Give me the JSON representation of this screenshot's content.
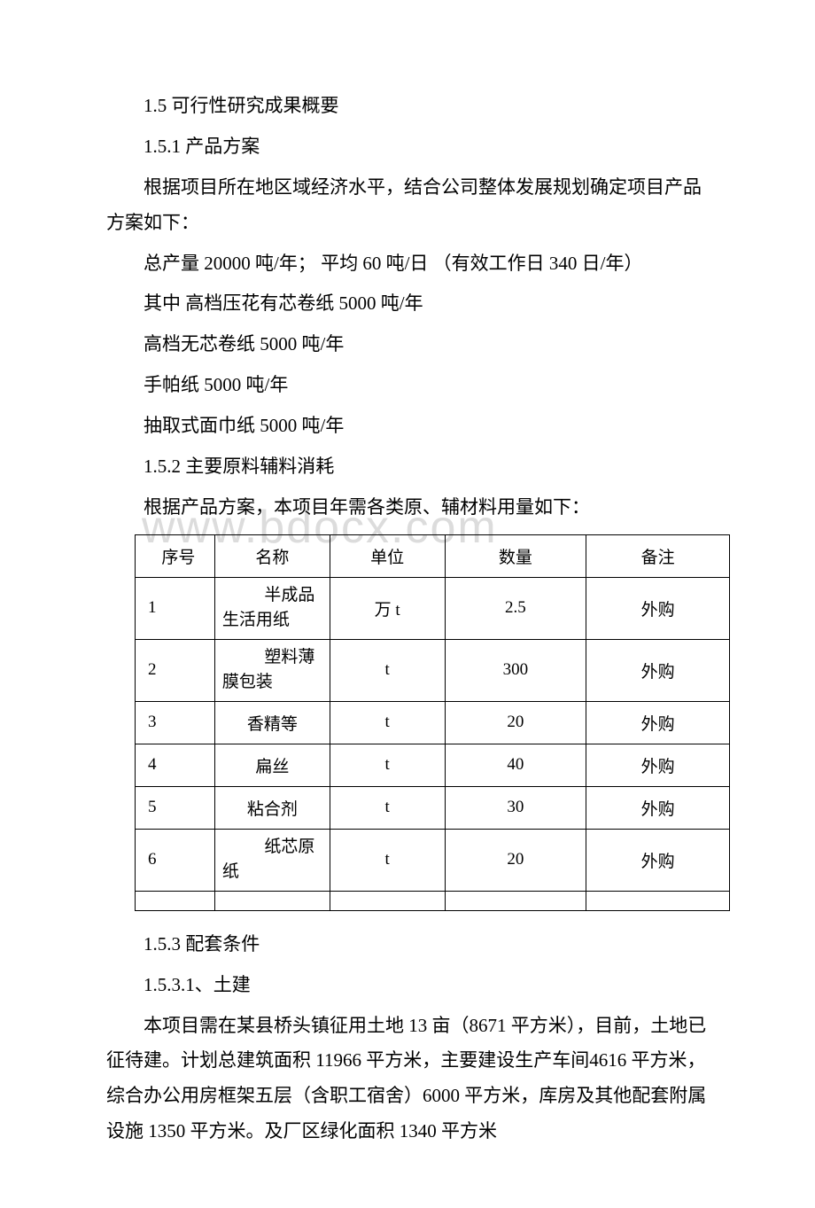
{
  "watermark": "www.bdocx.com",
  "paragraphs": {
    "p1": "1.5 可行性研究成果概要",
    "p2": "1.5.1 产品方案",
    "p3": "根据项目所在地区域经济水平，结合公司整体发展规划确定项目产品方案如下：",
    "p4": "总产量 20000 吨/年；  平均 60 吨/日 （有效工作日 340 日/年）",
    "p5": "其中 高档压花有芯卷纸 5000 吨/年",
    "p6": "高档无芯卷纸 5000 吨/年",
    "p7": "手帕纸 5000 吨/年",
    "p8": "抽取式面巾纸 5000 吨/年",
    "p9": "1.5.2 主要原料辅料消耗",
    "p10": "根据产品方案，本项目年需各类原、辅材料用量如下：",
    "p11": "1.5.3 配套条件",
    "p12": "1.5.3.1、土建",
    "p13": "本项目需在某县桥头镇征用土地 13 亩（8671 平方米），目前，土地已征待建。计划总建筑面积 11966 平方米，主要建设生产车间4616 平方米，综合办公用房框架五层（含职工宿舍）6000 平方米，库房及其他配套附属设施 1350 平方米。及厂区绿化面积 1340 平方米"
  },
  "table": {
    "headers": {
      "seq": "序号",
      "name": "名称",
      "unit": "单位",
      "qty": "数量",
      "note": "备注"
    },
    "rows": [
      {
        "seq": "1",
        "name_line1": "半成品",
        "name_line2": "生活用纸",
        "unit": "万 t",
        "qty": "2.5",
        "note": "外购"
      },
      {
        "seq": "2",
        "name_line1": "塑料薄",
        "name_line2": "膜包装",
        "unit": "t",
        "qty": "300",
        "note": "外购"
      },
      {
        "seq": "3",
        "name": "香精等",
        "unit": "t",
        "qty": "20",
        "note": "外购"
      },
      {
        "seq": "4",
        "name": "扁丝",
        "unit": "t",
        "qty": "40",
        "note": "外购"
      },
      {
        "seq": "5",
        "name": "粘合剂",
        "unit": "t",
        "qty": "30",
        "note": "外购"
      },
      {
        "seq": "6",
        "name_line1": "纸芯原",
        "name_line2": "纸",
        "unit": "t",
        "qty": "20",
        "note": "外购"
      }
    ]
  }
}
